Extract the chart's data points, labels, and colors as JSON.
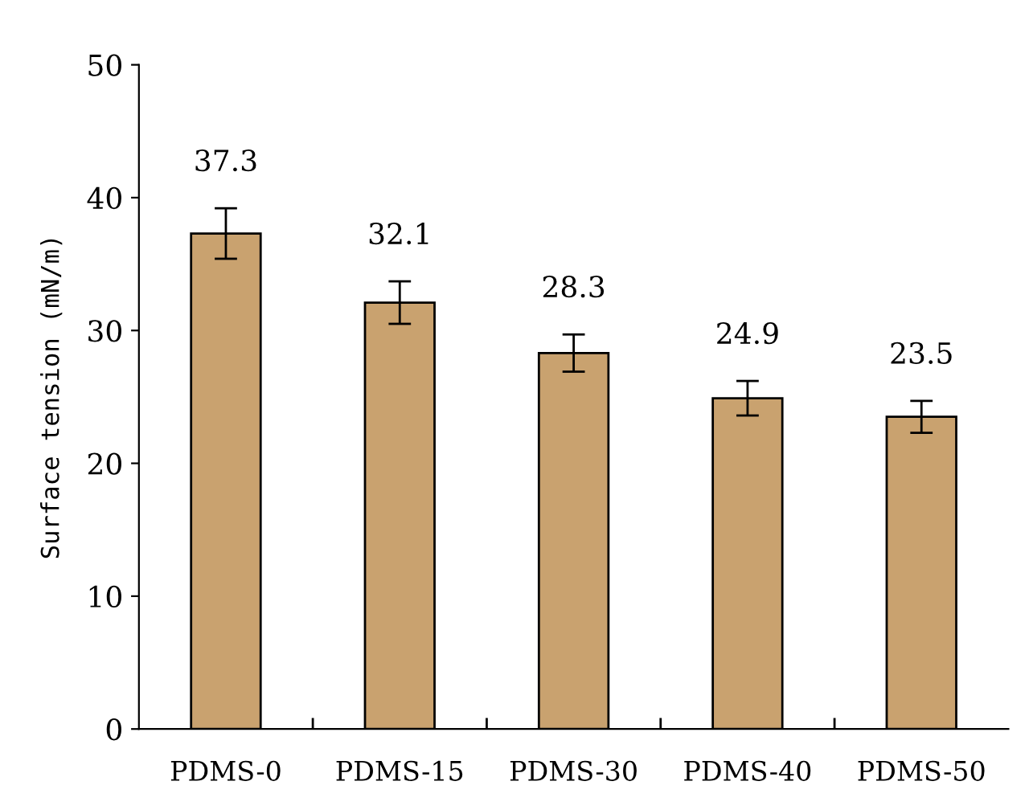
{
  "chart_data": {
    "type": "bar",
    "ylabel": "Surface tension (mN/m)",
    "categories": [
      "PDMS-0",
      "PDMS-15",
      "PDMS-30",
      "PDMS-40",
      "PDMS-50"
    ],
    "values": [
      37.3,
      32.1,
      28.3,
      24.9,
      23.5
    ],
    "errors": [
      1.9,
      1.6,
      1.4,
      1.3,
      1.2
    ],
    "color": "#c9a26f",
    "ylim": [
      0,
      50
    ],
    "yticks": [
      0,
      10,
      20,
      30,
      40,
      50
    ],
    "data_labels": true,
    "grid": false,
    "legend": false
  }
}
